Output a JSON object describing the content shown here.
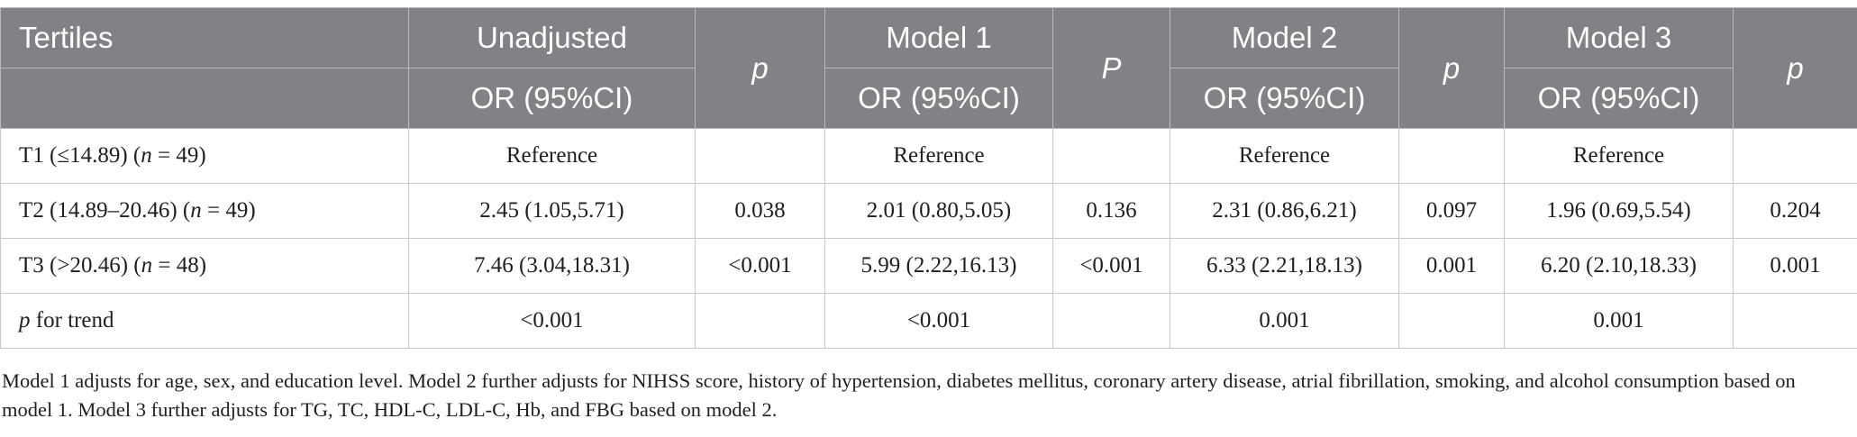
{
  "table": {
    "header": {
      "tertiles": "Tertiles",
      "unadjusted": "Unadjusted",
      "model1": "Model 1",
      "model2": "Model 2",
      "model3": "Model 3",
      "p_unadjusted": "p",
      "p_model1": "P",
      "p_model2": "p",
      "p_model3": "p",
      "or_ci": "OR (95%CI)"
    },
    "rows": [
      {
        "label_pre": "T1 (≤14.89) (",
        "label_n": "n",
        "label_post": " = 49)",
        "cells": [
          "Reference",
          "",
          "Reference",
          "",
          "Reference",
          "",
          "Reference",
          ""
        ]
      },
      {
        "label_pre": "T2 (14.89–20.46) (",
        "label_n": "n",
        "label_post": " = 49)",
        "cells": [
          "2.45 (1.05,5.71)",
          "0.038",
          "2.01 (0.80,5.05)",
          "0.136",
          "2.31 (0.86,6.21)",
          "0.097",
          "1.96 (0.69,5.54)",
          "0.204"
        ]
      },
      {
        "label_pre": "T3 (>20.46) (",
        "label_n": "n",
        "label_post": " = 48)",
        "cells": [
          "7.46 (3.04,18.31)",
          "<0.001",
          "5.99 (2.22,16.13)",
          "<0.001",
          "6.33 (2.21,18.13)",
          "0.001",
          "6.20 (2.10,18.33)",
          "0.001"
        ]
      }
    ],
    "trend_row": {
      "label_p": "p",
      "label_rest": " for trend",
      "cells": [
        "<0.001",
        "<0.001",
        "0.001",
        "0.001"
      ]
    }
  },
  "footnote": "Model 1 adjusts for age, sex, and education level. Model 2 further adjusts for NIHSS score, history of hypertension, diabetes mellitus, coronary artery disease, atrial fibrillation, smoking, and alcohol consumption based on model 1. Model 3 further adjusts for TG, TC, HDL-C, LDL-C, Hb, and FBG based on model 2."
}
